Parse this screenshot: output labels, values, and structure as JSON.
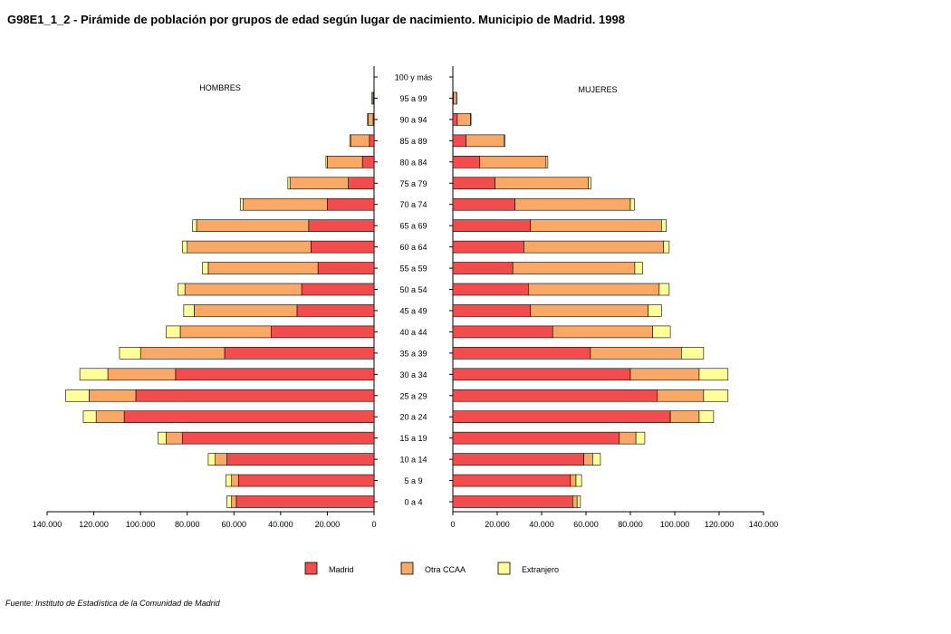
{
  "title": "G98E1_1_2 - Pirámide de población por grupos de edad según lugar de nacimiento. Municipio de Madrid.  1998",
  "footer": "Fuente: Instituto de Estadística de la Comunidad de Madrid",
  "colors": {
    "Madrid": "#f24c4c",
    "Otra CCAA": "#f9a866",
    "Extranjero": "#ffff99"
  },
  "chart_data": {
    "type": "bar",
    "orientation": "horizontal",
    "stacked": true,
    "side_labels": {
      "left": "HOMBRES",
      "right": "MUJERES"
    },
    "categories": [
      "100 y más",
      "95 a 99",
      "90 a 94",
      "85 a 89",
      "80 a 84",
      "75 a 79",
      "70 a 74",
      "65 a 69",
      "60 a 64",
      "55 a 59",
      "50 a 54",
      "45 a 49",
      "40 a  44",
      "35 a 39",
      "30 a 34",
      "25 a 29",
      "20 a 24",
      "15 a 19",
      "10 a 14",
      "5 a 9",
      "0 a 4"
    ],
    "series_names": [
      "Madrid",
      "Otra CCAA",
      "Extranjero"
    ],
    "hombres": {
      "Madrid": [
        0,
        200,
        400,
        2000,
        5000,
        11000,
        20000,
        28000,
        27000,
        24000,
        31000,
        33000,
        44000,
        64000,
        85000,
        102000,
        107000,
        82000,
        63000,
        58000,
        59000
      ],
      "Otra CCAA": [
        0,
        600,
        2200,
        8000,
        15000,
        25000,
        36000,
        48000,
        53000,
        47000,
        50000,
        44000,
        39000,
        36000,
        29000,
        20000,
        12000,
        7000,
        5000,
        3000,
        2000
      ],
      "Extranjero": [
        0,
        100,
        200,
        400,
        600,
        900,
        1300,
        1700,
        2000,
        2500,
        3000,
        4500,
        6000,
        9000,
        12000,
        10000,
        5500,
        3500,
        3000,
        2500,
        2000
      ]
    },
    "mujeres": {
      "Madrid": [
        0,
        300,
        2000,
        6000,
        12000,
        19000,
        28000,
        35000,
        32000,
        27000,
        34000,
        35000,
        45000,
        62000,
        80000,
        92000,
        98000,
        75000,
        59000,
        53000,
        54000
      ],
      "Otra CCAA": [
        0,
        1400,
        6000,
        17000,
        30000,
        42000,
        52000,
        59000,
        63000,
        55000,
        59000,
        53000,
        45000,
        41000,
        31000,
        21000,
        13000,
        7500,
        4000,
        2500,
        2000
      ],
      "Extranjero": [
        0,
        100,
        200,
        400,
        800,
        1200,
        1800,
        2200,
        2500,
        3500,
        4500,
        6000,
        8000,
        10000,
        13000,
        11000,
        6500,
        4000,
        3500,
        2500,
        1500
      ]
    },
    "xlim": [
      0,
      140000
    ],
    "ticks": [
      0,
      20000,
      40000,
      60000,
      80000,
      100000,
      120000,
      140000
    ],
    "tick_labels": [
      "0",
      "20.000",
      "40.000",
      "60.000",
      "80.000",
      "100.000",
      "120.000",
      "140.000"
    ],
    "legend_position": "bottom"
  }
}
